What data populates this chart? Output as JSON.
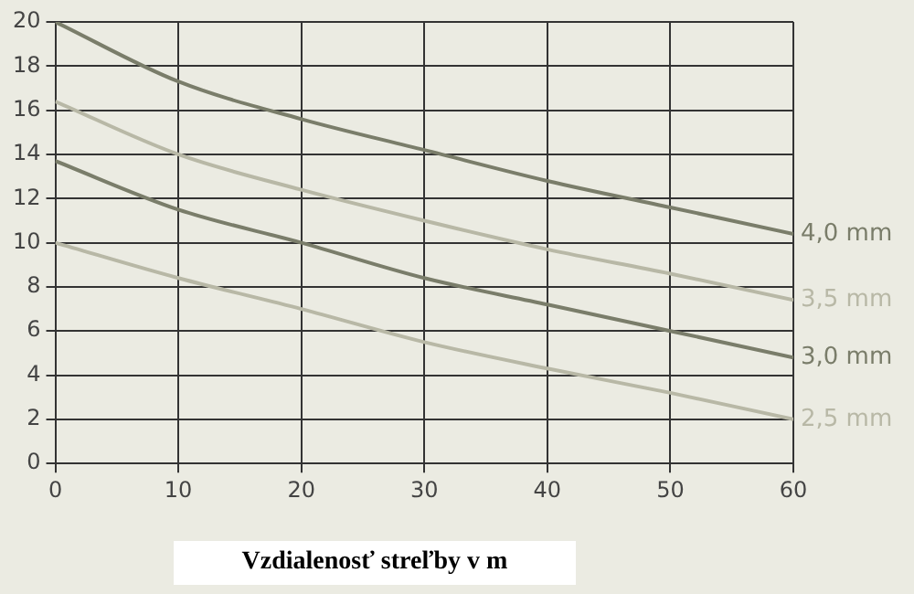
{
  "chart_data": {
    "type": "line",
    "xlabel": "Vzdialenosť streľby v m",
    "x": [
      0,
      10,
      20,
      30,
      40,
      50,
      60
    ],
    "xlim": [
      0,
      60
    ],
    "xticks": [
      0,
      10,
      20,
      30,
      40,
      50,
      60
    ],
    "ylim": [
      0,
      20
    ],
    "yticks": [
      0,
      2,
      4,
      6,
      8,
      10,
      12,
      14,
      16,
      18,
      20
    ],
    "grid": true,
    "legend": false,
    "marker": "none",
    "line_style": "solid",
    "series": [
      {
        "name": "4,0 mm",
        "color": "#7a7d6a",
        "values": [
          20,
          17.3,
          15.6,
          14.2,
          12.8,
          11.6,
          10.4
        ]
      },
      {
        "name": "3,5 mm",
        "color": "#b8b8a6",
        "values": [
          16.4,
          14,
          12.4,
          11,
          9.7,
          8.6,
          7.4
        ]
      },
      {
        "name": "3,0 mm",
        "color": "#7a7d6a",
        "values": [
          13.7,
          11.5,
          10,
          8.4,
          7.2,
          6.0,
          4.8
        ]
      },
      {
        "name": "2,5 mm",
        "color": "#b8b8a6",
        "values": [
          10,
          8.4,
          7,
          5.5,
          4.3,
          3.2,
          2.0
        ]
      }
    ]
  }
}
